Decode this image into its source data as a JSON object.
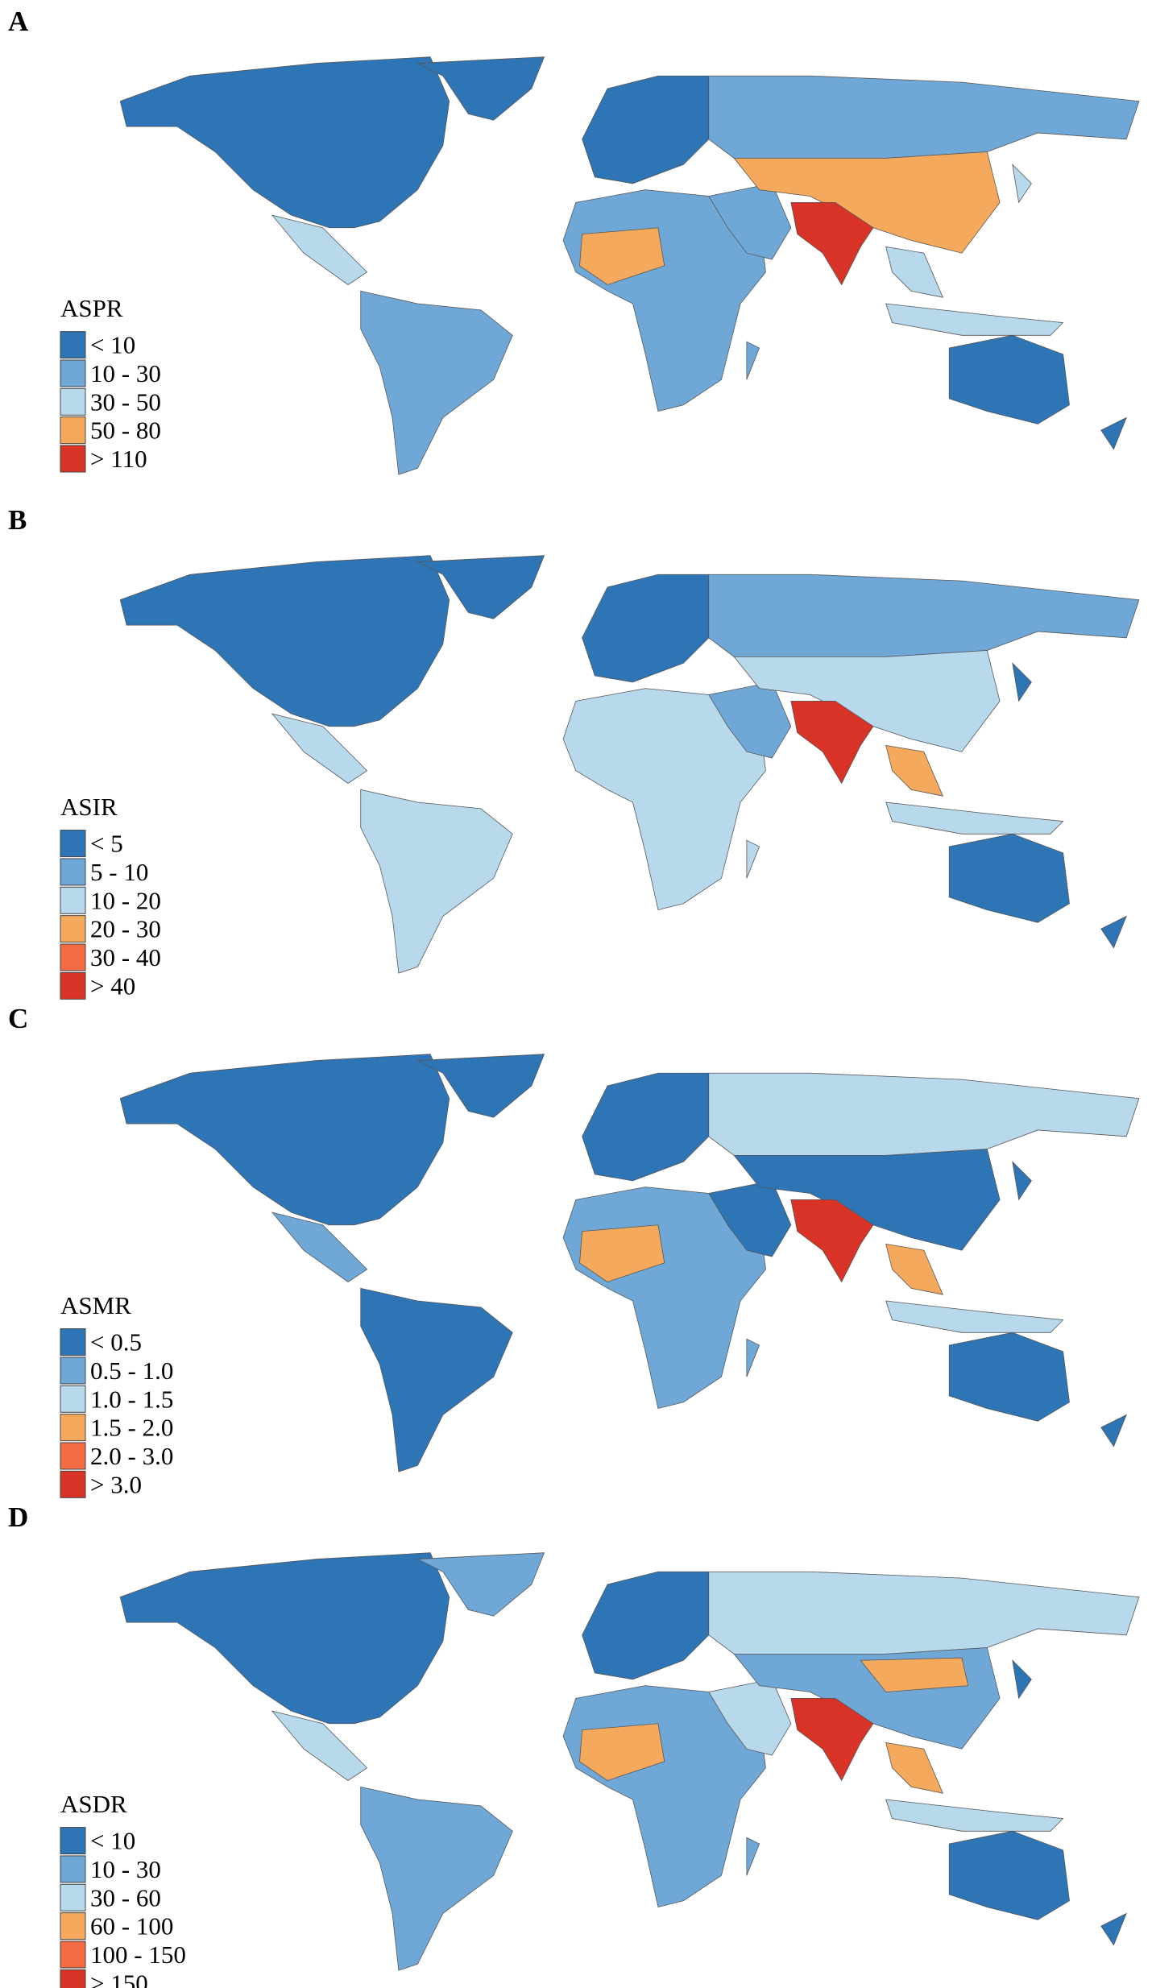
{
  "panels": [
    {
      "label": "A",
      "legend": {
        "title": "ASPR",
        "items": [
          {
            "label": "< 10",
            "color": "#2e75b6"
          },
          {
            "label": "10 - 30",
            "color": "#6fa8d6"
          },
          {
            "label": "30 - 50",
            "color": "#b8d8ec"
          },
          {
            "label": "50 - 80",
            "color": "#f5a95c"
          },
          {
            "label": "> 110",
            "color": "#d93327"
          }
        ]
      }
    },
    {
      "label": "B",
      "legend": {
        "title": "ASIR",
        "items": [
          {
            "label": "< 5",
            "color": "#2e75b6"
          },
          {
            "label": "5 - 10",
            "color": "#6fa8d6"
          },
          {
            "label": "10 - 20",
            "color": "#b8d8ec"
          },
          {
            "label": "20 - 30",
            "color": "#f5a95c"
          },
          {
            "label": "30 - 40",
            "color": "#f26b43"
          },
          {
            "label": "> 40",
            "color": "#d93327"
          }
        ]
      }
    },
    {
      "label": "C",
      "legend": {
        "title": "ASMR",
        "items": [
          {
            "label": "< 0.5",
            "color": "#2e75b6"
          },
          {
            "label": "0.5 - 1.0",
            "color": "#6fa8d6"
          },
          {
            "label": "1.0 - 1.5",
            "color": "#b8d8ec"
          },
          {
            "label": "1.5 - 2.0",
            "color": "#f5a95c"
          },
          {
            "label": "2.0 - 3.0",
            "color": "#f26b43"
          },
          {
            "label": "> 3.0",
            "color": "#d93327"
          }
        ]
      }
    },
    {
      "label": "D",
      "legend": {
        "title": "ASDR",
        "items": [
          {
            "label": "< 10",
            "color": "#2e75b6"
          },
          {
            "label": "10 - 30",
            "color": "#6fa8d6"
          },
          {
            "label": "30 - 60",
            "color": "#b8d8ec"
          },
          {
            "label": "60 - 100",
            "color": "#f5a95c"
          },
          {
            "label": "100 - 150",
            "color": "#f26b43"
          },
          {
            "label": "> 150",
            "color": "#d93327"
          }
        ]
      }
    }
  ]
}
